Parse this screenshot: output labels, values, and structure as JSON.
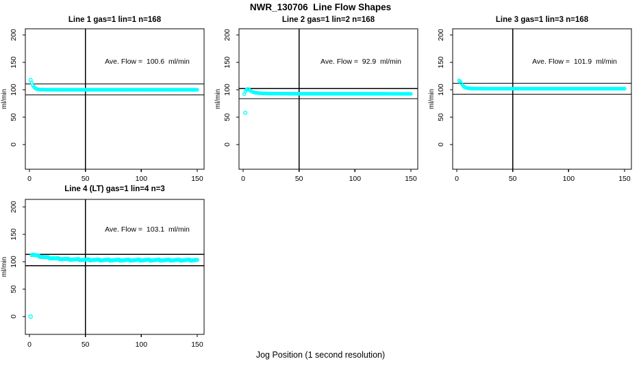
{
  "page": {
    "title": "NWR_130706  Line Flow Shapes",
    "xlabel": "Jog Position (1 second resolution)",
    "background": "#ffffff"
  },
  "colors": {
    "series": "#00ffff",
    "axis": "#000000",
    "text": "#000000"
  },
  "chart_data": [
    {
      "type": "scatter",
      "title": "Line 1 gas=1 lin=1 n=168",
      "annotation": "Ave. Flow =  100.6  ml/min",
      "ave_flow_ml_min": 100.6,
      "n": 168,
      "ylabel": "ml/min",
      "x_ticks": [
        0,
        50,
        100,
        150
      ],
      "y_ticks": [
        0,
        50,
        100,
        150,
        200
      ],
      "xlim": [
        0,
        150
      ],
      "ylim": [
        0,
        200
      ],
      "grid": false,
      "legend": false,
      "vline_x": 50,
      "hlines": [
        110.7,
        90.5
      ],
      "x_end": 150,
      "marker": "open-circle",
      "marker_r": 2,
      "jitter": 0,
      "series_keypoints": [
        [
          2,
          113
        ],
        [
          3,
          108
        ],
        [
          4,
          105
        ],
        [
          5,
          103
        ],
        [
          7,
          101
        ],
        [
          10,
          100.3
        ],
        [
          20,
          100
        ],
        [
          150,
          100
        ]
      ],
      "outliers": [
        [
          1,
          118
        ]
      ]
    },
    {
      "type": "scatter",
      "title": "Line 2 gas=1 lin=2 n=168",
      "annotation": "Ave. Flow =  92.9  ml/min",
      "ave_flow_ml_min": 92.9,
      "n": 168,
      "ylabel": "ml/min",
      "x_ticks": [
        0,
        50,
        100,
        150
      ],
      "y_ticks": [
        0,
        50,
        100,
        150,
        200
      ],
      "xlim": [
        0,
        150
      ],
      "ylim": [
        0,
        200
      ],
      "grid": false,
      "legend": false,
      "vline_x": 50,
      "hlines": [
        102.2,
        83.6
      ],
      "x_end": 150,
      "marker": "open-circle",
      "marker_r": 2,
      "jitter": 0,
      "series_keypoints": [
        [
          1,
          92
        ],
        [
          2,
          97
        ],
        [
          3,
          100
        ],
        [
          4,
          101.5
        ],
        [
          5,
          101
        ],
        [
          6,
          99
        ],
        [
          8,
          96.5
        ],
        [
          10,
          95
        ],
        [
          14,
          93.8
        ],
        [
          20,
          93.2
        ],
        [
          40,
          92.8
        ],
        [
          150,
          92.6
        ]
      ],
      "outliers": [
        [
          2,
          58
        ]
      ]
    },
    {
      "type": "scatter",
      "title": "Line 3 gas=1 lin=3 n=168",
      "annotation": "Ave. Flow =  101.9  ml/min",
      "ave_flow_ml_min": 101.9,
      "n": 168,
      "ylabel": "ml/min",
      "x_ticks": [
        0,
        50,
        100,
        150
      ],
      "y_ticks": [
        0,
        50,
        100,
        150,
        200
      ],
      "xlim": [
        0,
        150
      ],
      "ylim": [
        0,
        200
      ],
      "grid": false,
      "legend": false,
      "vline_x": 50,
      "hlines": [
        112.1,
        91.7
      ],
      "x_end": 150,
      "marker": "open-circle",
      "marker_r": 2,
      "jitter": 0,
      "series_keypoints": [
        [
          2,
          117
        ],
        [
          3,
          115.5
        ],
        [
          4,
          112
        ],
        [
          5,
          109
        ],
        [
          6,
          106.5
        ],
        [
          7,
          105
        ],
        [
          8,
          104
        ],
        [
          10,
          102.8
        ],
        [
          14,
          102.2
        ],
        [
          25,
          102
        ],
        [
          150,
          101.9
        ]
      ],
      "outliers": []
    },
    {
      "type": "scatter",
      "title": "Line 4 (LT) gas=1 lin=4 n=3",
      "annotation": "Ave. Flow =  103.1  ml/min",
      "ave_flow_ml_min": 103.1,
      "n": 3,
      "ylabel": "ml/min",
      "x_ticks": [
        0,
        50,
        100,
        150
      ],
      "y_ticks": [
        0,
        50,
        100,
        150,
        200
      ],
      "xlim": [
        0,
        150
      ],
      "ylim": [
        0,
        200
      ],
      "grid": false,
      "legend": false,
      "vline_x": 50,
      "hlines": [
        113.4,
        92.8
      ],
      "x_end": 150,
      "marker": "open-circle",
      "marker_r": 2.3,
      "jitter": 0.9,
      "series_keypoints": [
        [
          2,
          112.5
        ],
        [
          3,
          113
        ],
        [
          4,
          112.5
        ],
        [
          6,
          111.5
        ],
        [
          9,
          110
        ],
        [
          13,
          108.5
        ],
        [
          18,
          107
        ],
        [
          24,
          105.8
        ],
        [
          32,
          104.8
        ],
        [
          42,
          104
        ],
        [
          55,
          103.4
        ],
        [
          70,
          103
        ],
        [
          90,
          102.9
        ],
        [
          110,
          103
        ],
        [
          130,
          102.9
        ],
        [
          150,
          103
        ]
      ],
      "outliers": [
        [
          1,
          0
        ]
      ]
    }
  ]
}
